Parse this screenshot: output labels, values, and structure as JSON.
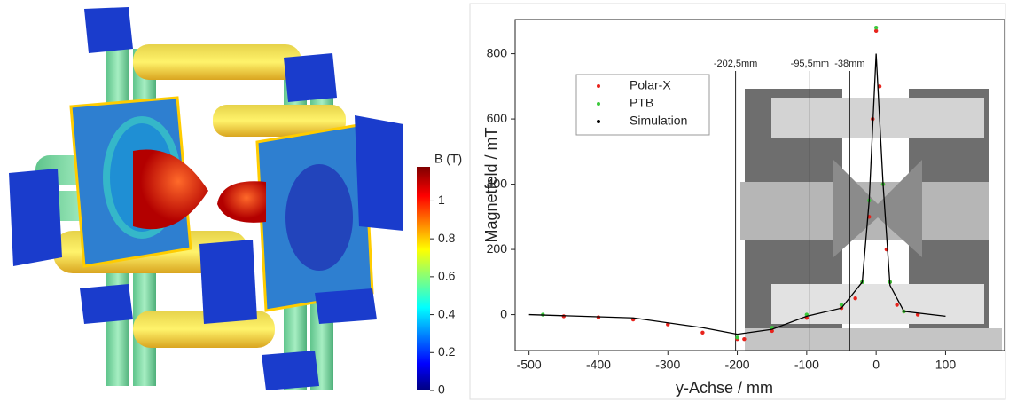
{
  "colorbar": {
    "title": "B (T)",
    "lim": [
      0,
      1.18
    ],
    "ticks": [
      0,
      0.2,
      0.4,
      0.6,
      0.8,
      1
    ]
  },
  "chart_data": {
    "type": "scatter",
    "x_label": "y-Achse  /  mm",
    "y_label": "Magnetfeld  /  mT",
    "xlim": [
      -520,
      185
    ],
    "ylim": [
      -110,
      905
    ],
    "xticks": [
      -500,
      -400,
      -300,
      -200,
      -100,
      0,
      100
    ],
    "yticks": [
      0,
      200,
      400,
      600,
      800
    ],
    "vlines": [
      {
        "value": -202.5,
        "label": "-202,5mm"
      },
      {
        "value": -95.5,
        "label": "-95,5mm"
      },
      {
        "value": -38,
        "label": "-38mm"
      }
    ],
    "series": [
      {
        "name": "Polar-X",
        "color": "#e8231c",
        "style": "points",
        "x": [
          -450,
          -400,
          -350,
          -300,
          -250,
          -200,
          -190,
          -150,
          -100,
          -50,
          -30,
          -20,
          -10,
          -5,
          0,
          5,
          10,
          15,
          20,
          30,
          40,
          60
        ],
        "values": [
          -5,
          -8,
          -15,
          -30,
          -55,
          -75,
          -75,
          -50,
          -10,
          20,
          50,
          100,
          300,
          600,
          870,
          700,
          400,
          200,
          100,
          30,
          10,
          0
        ]
      },
      {
        "name": "PTB",
        "color": "#3cc83c",
        "style": "points",
        "x": [
          -480,
          -200,
          -150,
          -100,
          -50,
          -20,
          -10,
          0,
          10,
          20,
          40
        ],
        "values": [
          0,
          -70,
          -40,
          0,
          30,
          100,
          350,
          880,
          400,
          100,
          10
        ]
      },
      {
        "name": "Simulation",
        "color": "#000000",
        "style": "line",
        "x": [
          -500,
          -350,
          -250,
          -200,
          -150,
          -100,
          -50,
          -20,
          -10,
          0,
          10,
          20,
          40,
          100
        ],
        "values": [
          0,
          -10,
          -40,
          -60,
          -45,
          -5,
          20,
          100,
          350,
          800,
          400,
          90,
          10,
          -5
        ]
      }
    ]
  }
}
